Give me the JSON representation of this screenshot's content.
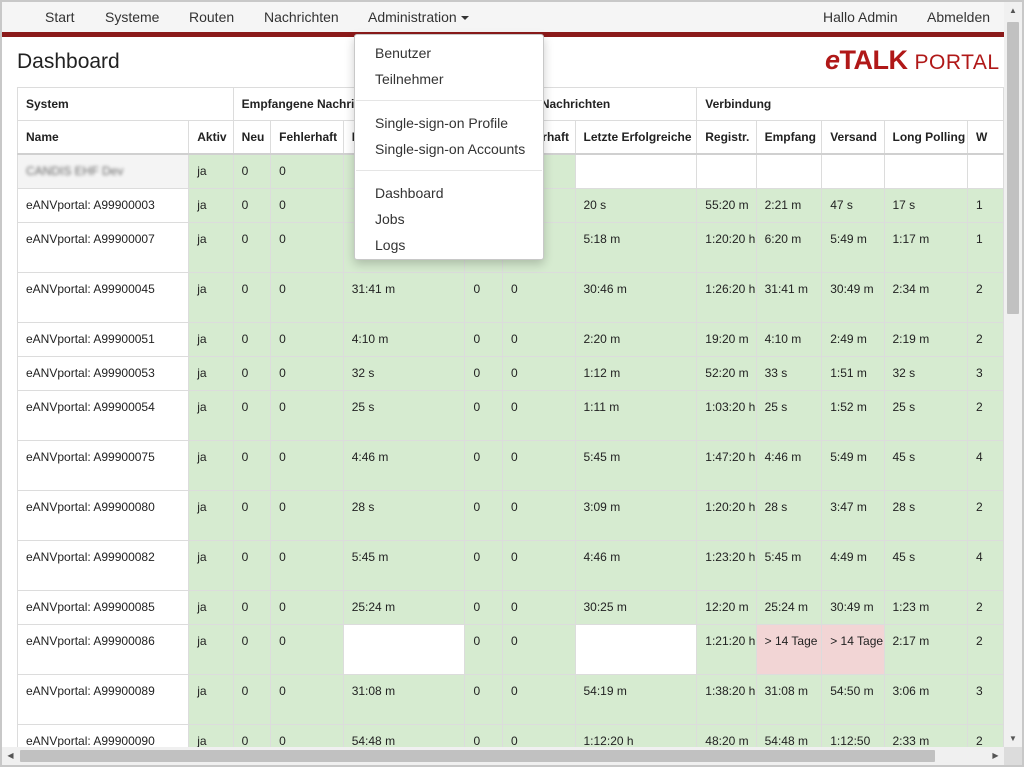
{
  "nav": {
    "start": "Start",
    "systeme": "Systeme",
    "routen": "Routen",
    "nachrichten": "Nachrichten",
    "administration": "Administration",
    "greeting": "Hallo Admin",
    "logout": "Abmelden"
  },
  "page_title": "Dashboard",
  "brand": {
    "e": "e",
    "talk": "TALK",
    "portal": "PORTAL"
  },
  "admin_menu": {
    "group1": [
      "Benutzer",
      "Teilnehmer"
    ],
    "group2": [
      "Single-sign-on Profile",
      "Single-sign-on Accounts"
    ],
    "group3": [
      "Dashboard",
      "Jobs",
      "Logs"
    ]
  },
  "table": {
    "groups": [
      "System",
      "Empfangene Nachrichten",
      "Versendete Nachrichten",
      "Verbindung"
    ],
    "columns": [
      "Name",
      "Aktiv",
      "Neu",
      "Fehlerhaft",
      "Letzte Erfolgreiche",
      "Neu",
      "Fehlerhaft",
      "Letzte Erfolgreiche",
      "Registr.",
      "Empfang",
      "Versand",
      "Long Polling",
      "W"
    ],
    "rows": [
      {
        "name": "CANDIS EHF Dev",
        "aktiv": "ja",
        "e_neu": "0",
        "e_fehl": "0",
        "e_last": "",
        "v_neu": "0",
        "v_fehl": "0",
        "v_last": "",
        "registr": "",
        "empfang": "",
        "versand": "",
        "long_polling": "",
        "w": ""
      },
      {
        "name": "eANVportal: A99900003",
        "aktiv": "ja",
        "e_neu": "0",
        "e_fehl": "0",
        "e_last": "",
        "v_neu": "0",
        "v_fehl": "0",
        "v_last": "20 s",
        "registr": "55:20 m",
        "empfang": "2:21 m",
        "versand": "47 s",
        "long_polling": "17 s",
        "w": "1"
      },
      {
        "name": "eANVportal: A99900007",
        "aktiv": "ja",
        "e_neu": "0",
        "e_fehl": "0",
        "e_last": "",
        "v_neu": "0",
        "v_fehl": "0",
        "v_last": "5:18 m",
        "registr": "1:20:20 h",
        "empfang": "6:20 m",
        "versand": "5:49 m",
        "long_polling": "1:17 m",
        "w": "1"
      },
      {
        "name": "eANVportal: A99900045",
        "aktiv": "ja",
        "e_neu": "0",
        "e_fehl": "0",
        "e_last": "31:41 m",
        "v_neu": "0",
        "v_fehl": "0",
        "v_last": "30:46 m",
        "registr": "1:26:20 h",
        "empfang": "31:41 m",
        "versand": "30:49 m",
        "long_polling": "2:34 m",
        "w": "2"
      },
      {
        "name": "eANVportal: A99900051",
        "aktiv": "ja",
        "e_neu": "0",
        "e_fehl": "0",
        "e_last": "4:10 m",
        "v_neu": "0",
        "v_fehl": "0",
        "v_last": "2:20 m",
        "registr": "19:20 m",
        "empfang": "4:10 m",
        "versand": "2:49 m",
        "long_polling": "2:19 m",
        "w": "2"
      },
      {
        "name": "eANVportal: A99900053",
        "aktiv": "ja",
        "e_neu": "0",
        "e_fehl": "0",
        "e_last": "32 s",
        "v_neu": "0",
        "v_fehl": "0",
        "v_last": "1:12 m",
        "registr": "52:20 m",
        "empfang": "33 s",
        "versand": "1:51 m",
        "long_polling": "32 s",
        "w": "3"
      },
      {
        "name": "eANVportal: A99900054",
        "aktiv": "ja",
        "e_neu": "0",
        "e_fehl": "0",
        "e_last": "25 s",
        "v_neu": "0",
        "v_fehl": "0",
        "v_last": "1:11 m",
        "registr": "1:03:20 h",
        "empfang": "25 s",
        "versand": "1:52 m",
        "long_polling": "25 s",
        "w": "2"
      },
      {
        "name": "eANVportal: A99900075",
        "aktiv": "ja",
        "e_neu": "0",
        "e_fehl": "0",
        "e_last": "4:46 m",
        "v_neu": "0",
        "v_fehl": "0",
        "v_last": "5:45 m",
        "registr": "1:47:20 h",
        "empfang": "4:46 m",
        "versand": "5:49 m",
        "long_polling": "45 s",
        "w": "4"
      },
      {
        "name": "eANVportal: A99900080",
        "aktiv": "ja",
        "e_neu": "0",
        "e_fehl": "0",
        "e_last": "28 s",
        "v_neu": "0",
        "v_fehl": "0",
        "v_last": "3:09 m",
        "registr": "1:20:20 h",
        "empfang": "28 s",
        "versand": "3:47 m",
        "long_polling": "28 s",
        "w": "2"
      },
      {
        "name": "eANVportal: A99900082",
        "aktiv": "ja",
        "e_neu": "0",
        "e_fehl": "0",
        "e_last": "5:45 m",
        "v_neu": "0",
        "v_fehl": "0",
        "v_last": "4:46 m",
        "registr": "1:23:20 h",
        "empfang": "5:45 m",
        "versand": "4:49 m",
        "long_polling": "45 s",
        "w": "4"
      },
      {
        "name": "eANVportal: A99900085",
        "aktiv": "ja",
        "e_neu": "0",
        "e_fehl": "0",
        "e_last": "25:24 m",
        "v_neu": "0",
        "v_fehl": "0",
        "v_last": "30:25 m",
        "registr": "12:20 m",
        "empfang": "25:24 m",
        "versand": "30:49 m",
        "long_polling": "1:23 m",
        "w": "2"
      },
      {
        "name": "eANVportal: A99900086",
        "aktiv": "ja",
        "e_neu": "0",
        "e_fehl": "0",
        "e_last": "",
        "v_neu": "0",
        "v_fehl": "0",
        "v_last": "",
        "registr": "1:21:20 h",
        "empfang": "> 14 Tage",
        "versand": "> 14 Tage",
        "long_polling": "2:17 m",
        "w": "2"
      },
      {
        "name": "eANVportal: A99900089",
        "aktiv": "ja",
        "e_neu": "0",
        "e_fehl": "0",
        "e_last": "31:08 m",
        "v_neu": "0",
        "v_fehl": "0",
        "v_last": "54:19 m",
        "registr": "1:38:20 h",
        "empfang": "31:08 m",
        "versand": "54:50 m",
        "long_polling": "3:06 m",
        "w": "3"
      },
      {
        "name": "eANVportal: A99900090",
        "aktiv": "ja",
        "e_neu": "0",
        "e_fehl": "0",
        "e_last": "54:48 m",
        "v_neu": "0",
        "v_fehl": "0",
        "v_last": "1:12:20 h",
        "registr": "48:20 m",
        "empfang": "54:48 m",
        "versand": "1:12:50",
        "long_polling": "2:33 m",
        "w": "2"
      }
    ]
  },
  "icons": {
    "caret": "caret-down-icon",
    "scroll_up": "arrow-up-icon",
    "scroll_down": "arrow-down-icon",
    "scroll_left": "arrow-left-icon",
    "scroll_right": "arrow-right-icon"
  },
  "colors": {
    "brand_red": "#b01818",
    "navbar_border": "#8b1a1a",
    "ok_green": "#d6ebd0",
    "alert_red": "#f2d5d5"
  }
}
